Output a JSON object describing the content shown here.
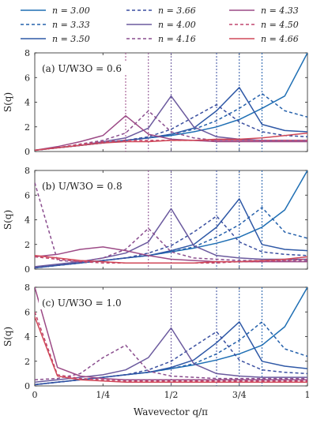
{
  "figure": {
    "xlabel": "Wavevector q/π",
    "ylabel": "S(q)",
    "xticks": [
      "0",
      "1/4",
      "1/2",
      "3/4",
      "1"
    ],
    "yticks": [
      "0",
      "2",
      "4",
      "6",
      "8"
    ]
  },
  "legend": [
    {
      "label": "n = 3.00",
      "color": "#1f6fb4",
      "style": "solid"
    },
    {
      "label": "n = 3.66",
      "color": "#3a4fa0",
      "style": "dashed"
    },
    {
      "label": "n = 4.33",
      "color": "#9c4a86",
      "style": "solid"
    },
    {
      "label": "n = 3.33",
      "color": "#2460ab",
      "style": "dashed"
    },
    {
      "label": "n = 4.00",
      "color": "#6b5a9e",
      "style": "solid"
    },
    {
      "label": "n = 4.50",
      "color": "#c0456e",
      "style": "dashed"
    },
    {
      "label": "n = 3.50",
      "color": "#2e58a6",
      "style": "solid"
    },
    {
      "label": "n = 4.16",
      "color": "#8a4d8e",
      "style": "dashed"
    },
    {
      "label": "n = 4.66",
      "color": "#d04858",
      "style": "solid"
    }
  ],
  "chart_data": [
    {
      "type": "line",
      "panel_label": "(a) U/W3O = 0.6",
      "xlabel": "",
      "ylabel": "S(q)",
      "xlim": [
        0,
        1
      ],
      "ylim": [
        0,
        8
      ],
      "x": [
        0,
        0.0833,
        0.1667,
        0.25,
        0.3333,
        0.4167,
        0.5,
        0.5833,
        0.6667,
        0.75,
        0.8333,
        0.9167,
        1.0
      ],
      "peak_lines": [
        0.3333,
        0.4167,
        0.5,
        0.6667,
        0.75,
        0.8333
      ],
      "series": [
        {
          "name": "n = 3.00",
          "values": [
            0.1,
            0.3,
            0.5,
            0.7,
            0.9,
            1.1,
            1.3,
            1.6,
            2.0,
            2.6,
            3.5,
            4.5,
            8.0
          ]
        },
        {
          "name": "n = 3.33",
          "values": [
            0.1,
            0.3,
            0.5,
            0.7,
            0.9,
            1.1,
            1.4,
            1.8,
            2.5,
            3.5,
            4.7,
            3.3,
            2.8
          ]
        },
        {
          "name": "n = 3.50",
          "values": [
            0.1,
            0.3,
            0.5,
            0.7,
            0.9,
            1.1,
            1.4,
            1.9,
            3.3,
            5.2,
            2.2,
            1.7,
            1.6
          ]
        },
        {
          "name": "n = 3.66",
          "values": [
            0.1,
            0.3,
            0.5,
            0.7,
            0.9,
            1.2,
            1.8,
            2.8,
            3.8,
            2.4,
            1.6,
            1.3,
            1.2
          ]
        },
        {
          "name": "n = 4.00",
          "values": [
            0.1,
            0.3,
            0.5,
            0.8,
            1.1,
            1.9,
            4.5,
            2.0,
            1.2,
            1.0,
            0.9,
            0.9,
            0.9
          ]
        },
        {
          "name": "n = 4.16",
          "values": [
            0.1,
            0.3,
            0.6,
            0.9,
            1.5,
            3.3,
            1.6,
            1.1,
            0.9,
            0.9,
            0.9,
            0.9,
            0.9
          ]
        },
        {
          "name": "n = 4.33",
          "values": [
            0.1,
            0.4,
            0.8,
            1.3,
            2.9,
            1.4,
            1.0,
            0.9,
            0.8,
            0.8,
            0.8,
            0.8,
            0.8
          ]
        },
        {
          "name": "n = 4.50",
          "values": [
            0.1,
            0.3,
            0.6,
            0.8,
            0.9,
            0.9,
            0.9,
            0.9,
            0.9,
            0.9,
            0.9,
            0.9,
            0.9
          ]
        },
        {
          "name": "n = 4.66",
          "values": [
            0.1,
            0.3,
            0.5,
            0.7,
            0.8,
            0.8,
            0.9,
            0.9,
            1.0,
            1.0,
            1.1,
            1.3,
            1.5
          ]
        }
      ]
    },
    {
      "type": "line",
      "panel_label": "(b) U/W3O = 0.8",
      "xlabel": "",
      "ylabel": "S(q)",
      "xlim": [
        0,
        1
      ],
      "ylim": [
        0,
        8
      ],
      "x": [
        0,
        0.0833,
        0.1667,
        0.25,
        0.3333,
        0.4167,
        0.5,
        0.5833,
        0.6667,
        0.75,
        0.8333,
        0.9167,
        1.0
      ],
      "peak_lines": [
        0.4167,
        0.5,
        0.6667,
        0.75,
        0.8333
      ],
      "series": [
        {
          "name": "n = 3.00",
          "values": [
            0.1,
            0.3,
            0.5,
            0.7,
            0.9,
            1.1,
            1.4,
            1.7,
            2.1,
            2.6,
            3.4,
            4.8,
            8.0
          ]
        },
        {
          "name": "n = 3.33",
          "values": [
            0.1,
            0.3,
            0.5,
            0.7,
            0.9,
            1.1,
            1.4,
            1.8,
            2.6,
            3.6,
            5.0,
            3.0,
            2.5
          ]
        },
        {
          "name": "n = 3.50",
          "values": [
            0.1,
            0.3,
            0.5,
            0.7,
            0.9,
            1.1,
            1.5,
            2.0,
            3.4,
            5.7,
            2.0,
            1.6,
            1.5
          ]
        },
        {
          "name": "n = 3.66",
          "values": [
            0.1,
            0.3,
            0.5,
            0.7,
            0.9,
            1.3,
            1.9,
            3.0,
            4.3,
            2.2,
            1.4,
            1.2,
            1.1
          ]
        },
        {
          "name": "n = 4.00",
          "values": [
            0.2,
            0.4,
            0.6,
            0.9,
            1.3,
            2.2,
            4.9,
            1.9,
            1.1,
            0.9,
            0.8,
            0.8,
            0.8
          ]
        },
        {
          "name": "n = 4.16",
          "values": [
            7.0,
            0.7,
            0.6,
            0.9,
            1.6,
            3.3,
            1.4,
            0.9,
            0.8,
            0.7,
            0.7,
            0.7,
            0.7
          ]
        },
        {
          "name": "n = 4.33",
          "values": [
            1.0,
            1.2,
            1.6,
            1.8,
            1.5,
            1.1,
            0.8,
            0.7,
            0.6,
            0.6,
            0.6,
            0.6,
            0.6
          ]
        },
        {
          "name": "n = 4.50",
          "values": [
            1.0,
            0.8,
            0.6,
            0.5,
            0.5,
            0.5,
            0.5,
            0.5,
            0.5,
            0.6,
            0.6,
            0.7,
            0.8
          ]
        },
        {
          "name": "n = 4.66",
          "values": [
            1.1,
            0.9,
            0.7,
            0.6,
            0.5,
            0.5,
            0.5,
            0.5,
            0.6,
            0.6,
            0.7,
            0.8,
            1.0
          ]
        }
      ]
    },
    {
      "type": "line",
      "panel_label": "(c) U/W3O = 1.0",
      "xlabel": "Wavevector q/π",
      "ylabel": "S(q)",
      "xlim": [
        0,
        1
      ],
      "ylim": [
        0,
        8
      ],
      "x": [
        0,
        0.0833,
        0.1667,
        0.25,
        0.3333,
        0.4167,
        0.5,
        0.5833,
        0.6667,
        0.75,
        0.8333,
        0.9167,
        1.0
      ],
      "peak_lines": [
        0.5,
        0.6667,
        0.75,
        0.8333
      ],
      "series": [
        {
          "name": "n = 3.00",
          "values": [
            0.1,
            0.3,
            0.5,
            0.7,
            0.9,
            1.1,
            1.4,
            1.7,
            2.1,
            2.6,
            3.3,
            4.8,
            8.0
          ]
        },
        {
          "name": "n = 3.33",
          "values": [
            0.1,
            0.3,
            0.5,
            0.7,
            0.9,
            1.1,
            1.4,
            1.8,
            2.6,
            3.7,
            5.2,
            3.0,
            2.4
          ]
        },
        {
          "name": "n = 3.50",
          "values": [
            0.1,
            0.3,
            0.5,
            0.7,
            0.9,
            1.1,
            1.5,
            2.1,
            3.5,
            5.2,
            2.0,
            1.6,
            1.4
          ]
        },
        {
          "name": "n = 3.66",
          "values": [
            0.1,
            0.3,
            0.5,
            0.7,
            0.9,
            1.3,
            2.0,
            3.2,
            4.4,
            2.1,
            1.3,
            1.1,
            1.0
          ]
        },
        {
          "name": "n = 4.00",
          "values": [
            0.3,
            0.5,
            0.7,
            0.9,
            1.3,
            2.3,
            4.7,
            1.8,
            1.0,
            0.8,
            0.7,
            0.7,
            0.7
          ]
        },
        {
          "name": "n = 4.16",
          "values": [
            0.5,
            0.6,
            1.0,
            2.3,
            3.3,
            1.2,
            0.8,
            0.7,
            0.6,
            0.6,
            0.6,
            0.6,
            0.6
          ]
        },
        {
          "name": "n = 4.33",
          "values": [
            8.0,
            1.5,
            0.8,
            0.6,
            0.5,
            0.5,
            0.5,
            0.5,
            0.5,
            0.5,
            0.5,
            0.5,
            0.5
          ]
        },
        {
          "name": "n = 4.50",
          "values": [
            6.0,
            0.9,
            0.6,
            0.5,
            0.4,
            0.4,
            0.4,
            0.4,
            0.4,
            0.4,
            0.4,
            0.4,
            0.4
          ]
        },
        {
          "name": "n = 4.66",
          "values": [
            5.6,
            0.8,
            0.5,
            0.4,
            0.3,
            0.3,
            0.3,
            0.3,
            0.3,
            0.3,
            0.3,
            0.3,
            0.3
          ]
        }
      ]
    }
  ]
}
